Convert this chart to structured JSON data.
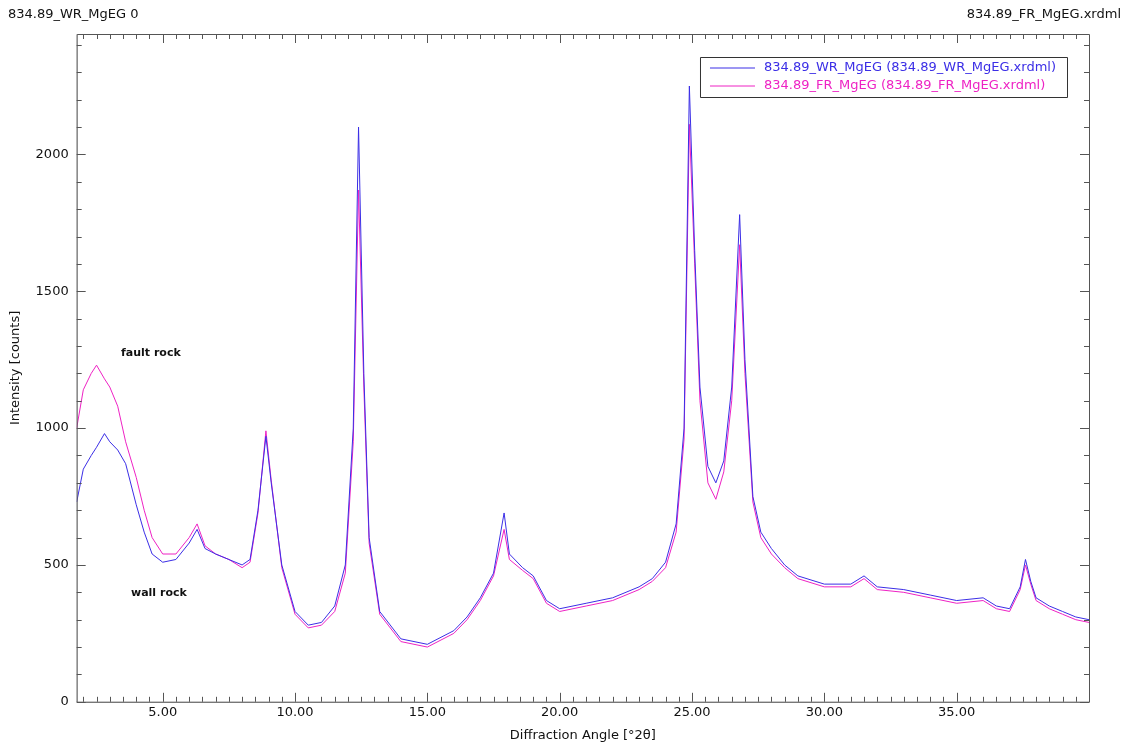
{
  "chart_data": {
    "type": "line",
    "xlabel": "Diffraction Angle [°2θ]",
    "ylabel": "Intensity [counts]",
    "annotations": [
      "834.89_WR_MgEG 0",
      "834.89_FR_MgEG.xrdml",
      "fault rock",
      "wall rock"
    ],
    "series": [
      {
        "name": "834.89_WR_MgEG (834.89_WR_MgEG.xrdml)",
        "color": "#3b2ee6",
        "x": [
          1.75,
          2.0,
          2.3,
          2.5,
          2.8,
          3.0,
          3.3,
          3.6,
          4.0,
          4.3,
          4.6,
          5.0,
          5.5,
          6.0,
          6.3,
          6.6,
          7.0,
          7.5,
          8.0,
          8.3,
          8.6,
          8.9,
          9.1,
          9.5,
          10.0,
          10.5,
          11.0,
          11.5,
          11.9,
          12.2,
          12.4,
          12.6,
          12.8,
          13.2,
          14.0,
          15.0,
          16.0,
          16.5,
          17.0,
          17.5,
          17.9,
          18.1,
          18.6,
          19.0,
          19.5,
          20.0,
          21.0,
          22.0,
          23.0,
          23.5,
          24.0,
          24.4,
          24.7,
          24.9,
          25.1,
          25.3,
          25.6,
          25.9,
          26.2,
          26.5,
          26.8,
          27.0,
          27.3,
          27.6,
          28.0,
          28.5,
          29.0,
          30.0,
          31.0,
          31.5,
          32.0,
          33.0,
          34.0,
          35.0,
          36.0,
          36.5,
          37.0,
          37.4,
          37.6,
          37.8,
          38.0,
          38.5,
          39.0,
          39.5,
          40.0
        ],
        "values": [
          730,
          850,
          900,
          930,
          980,
          950,
          920,
          870,
          720,
          620,
          540,
          510,
          520,
          580,
          630,
          560,
          540,
          520,
          500,
          520,
          700,
          970,
          800,
          500,
          330,
          280,
          290,
          350,
          500,
          1000,
          2100,
          1200,
          600,
          330,
          230,
          210,
          260,
          310,
          380,
          470,
          690,
          540,
          490,
          460,
          370,
          340,
          360,
          380,
          420,
          450,
          510,
          650,
          1000,
          2250,
          1650,
          1150,
          860,
          800,
          880,
          1150,
          1780,
          1250,
          750,
          620,
          560,
          500,
          460,
          430,
          430,
          460,
          420,
          410,
          390,
          370,
          380,
          350,
          340,
          420,
          520,
          440,
          380,
          350,
          330,
          310,
          300
        ]
      },
      {
        "name": "834.89_FR_MgEG (834.89_FR_MgEG.xrdml)",
        "color": "#ee22c4",
        "x": [
          1.75,
          2.0,
          2.3,
          2.5,
          2.8,
          3.0,
          3.3,
          3.6,
          4.0,
          4.3,
          4.6,
          5.0,
          5.5,
          6.0,
          6.3,
          6.6,
          7.0,
          7.5,
          8.0,
          8.3,
          8.6,
          8.9,
          9.1,
          9.5,
          10.0,
          10.5,
          11.0,
          11.5,
          11.9,
          12.2,
          12.4,
          12.6,
          12.8,
          13.2,
          14.0,
          15.0,
          16.0,
          16.5,
          17.0,
          17.5,
          17.9,
          18.1,
          18.6,
          19.0,
          19.5,
          20.0,
          21.0,
          22.0,
          23.0,
          23.5,
          24.0,
          24.4,
          24.7,
          24.9,
          25.1,
          25.3,
          25.6,
          25.9,
          26.2,
          26.5,
          26.8,
          27.0,
          27.3,
          27.6,
          28.0,
          28.5,
          29.0,
          30.0,
          31.0,
          31.5,
          32.0,
          33.0,
          34.0,
          35.0,
          36.0,
          36.5,
          37.0,
          37.4,
          37.6,
          37.8,
          38.0,
          38.5,
          39.0,
          39.5,
          40.0
        ],
        "values": [
          1000,
          1140,
          1200,
          1230,
          1180,
          1150,
          1080,
          950,
          820,
          700,
          600,
          540,
          540,
          600,
          650,
          570,
          540,
          520,
          490,
          510,
          690,
          990,
          810,
          490,
          320,
          270,
          280,
          330,
          470,
          950,
          1870,
          1150,
          580,
          320,
          220,
          200,
          250,
          300,
          370,
          460,
          630,
          520,
          480,
          450,
          360,
          330,
          350,
          370,
          410,
          440,
          490,
          620,
          960,
          2110,
          1600,
          1100,
          800,
          740,
          840,
          1100,
          1670,
          1200,
          730,
          600,
          540,
          490,
          450,
          420,
          420,
          450,
          410,
          400,
          380,
          360,
          370,
          340,
          330,
          410,
          500,
          430,
          370,
          340,
          320,
          300,
          290
        ]
      }
    ],
    "xlim": [
      1.75,
      40
    ],
    "ylim": [
      0,
      2440
    ],
    "xticks": [
      {
        "value": 2,
        "label": null
      },
      {
        "value": 2.5,
        "label": null
      },
      {
        "value": 3,
        "label": null
      },
      {
        "value": 3.5,
        "label": null
      },
      {
        "value": 4,
        "label": null
      },
      {
        "value": 4.5,
        "label": null
      },
      {
        "value": 5,
        "label": "5.00"
      },
      {
        "value": 5.5,
        "label": null
      },
      {
        "value": 6,
        "label": null
      },
      {
        "value": 6.5,
        "label": null
      },
      {
        "value": 7,
        "label": null
      },
      {
        "value": 7.5,
        "label": null
      },
      {
        "value": 8,
        "label": null
      },
      {
        "value": 8.5,
        "label": null
      },
      {
        "value": 9,
        "label": null
      },
      {
        "value": 9.5,
        "label": null
      },
      {
        "value": 10,
        "label": "10.00"
      },
      {
        "value": 10.5,
        "label": null
      },
      {
        "value": 11,
        "label": null
      },
      {
        "value": 11.5,
        "label": null
      },
      {
        "value": 12,
        "label": null
      },
      {
        "value": 12.5,
        "label": null
      },
      {
        "value": 13,
        "label": null
      },
      {
        "value": 13.5,
        "label": null
      },
      {
        "value": 14,
        "label": null
      },
      {
        "value": 14.5,
        "label": null
      },
      {
        "value": 15,
        "label": "15.00"
      },
      {
        "value": 15.5,
        "label": null
      },
      {
        "value": 16,
        "label": null
      },
      {
        "value": 16.5,
        "label": null
      },
      {
        "value": 17,
        "label": null
      },
      {
        "value": 17.5,
        "label": null
      },
      {
        "value": 18,
        "label": null
      },
      {
        "value": 18.5,
        "label": null
      },
      {
        "value": 19,
        "label": null
      },
      {
        "value": 19.5,
        "label": null
      },
      {
        "value": 20,
        "label": "20.00"
      },
      {
        "value": 20.5,
        "label": null
      },
      {
        "value": 21,
        "label": null
      },
      {
        "value": 21.5,
        "label": null
      },
      {
        "value": 22,
        "label": null
      },
      {
        "value": 22.5,
        "label": null
      },
      {
        "value": 23,
        "label": null
      },
      {
        "value": 23.5,
        "label": null
      },
      {
        "value": 24,
        "label": null
      },
      {
        "value": 24.5,
        "label": null
      },
      {
        "value": 25,
        "label": "25.00"
      },
      {
        "value": 25.5,
        "label": null
      },
      {
        "value": 26,
        "label": null
      },
      {
        "value": 26.5,
        "label": null
      },
      {
        "value": 27,
        "label": null
      },
      {
        "value": 27.5,
        "label": null
      },
      {
        "value": 28,
        "label": null
      },
      {
        "value": 28.5,
        "label": null
      },
      {
        "value": 29,
        "label": null
      },
      {
        "value": 29.5,
        "label": null
      },
      {
        "value": 30,
        "label": "30.00"
      },
      {
        "value": 30.5,
        "label": null
      },
      {
        "value": 31,
        "label": null
      },
      {
        "value": 31.5,
        "label": null
      },
      {
        "value": 32,
        "label": null
      },
      {
        "value": 32.5,
        "label": null
      },
      {
        "value": 33,
        "label": null
      },
      {
        "value": 33.5,
        "label": null
      },
      {
        "value": 34,
        "label": null
      },
      {
        "value": 34.5,
        "label": null
      },
      {
        "value": 35,
        "label": "35.00"
      },
      {
        "value": 35.5,
        "label": null
      },
      {
        "value": 36,
        "label": null
      },
      {
        "value": 36.5,
        "label": null
      },
      {
        "value": 37,
        "label": null
      },
      {
        "value": 37.5,
        "label": null
      },
      {
        "value": 38,
        "label": null
      },
      {
        "value": 38.5,
        "label": null
      },
      {
        "value": 39,
        "label": null
      },
      {
        "value": 39.5,
        "label": null
      }
    ],
    "yticks": [
      0,
      {
        "value": 100,
        "label": null
      },
      {
        "value": 200,
        "label": null
      },
      {
        "value": 300,
        "label": null
      },
      {
        "value": 400,
        "label": null
      },
      500,
      {
        "value": 600,
        "label": null
      },
      {
        "value": 700,
        "label": null
      },
      {
        "value": 800,
        "label": null
      },
      {
        "value": 900,
        "label": null
      },
      1000,
      {
        "value": 1100,
        "label": null
      },
      {
        "value": 1200,
        "label": null
      },
      {
        "value": 1300,
        "label": null
      },
      {
        "value": 1400,
        "label": null
      },
      1500,
      {
        "value": 1600,
        "label": null
      },
      {
        "value": 1700,
        "label": null
      },
      {
        "value": 1800,
        "label": null
      },
      {
        "value": 1900,
        "label": null
      },
      2000,
      {
        "value": 2100,
        "label": null
      },
      {
        "value": 2200,
        "label": null
      },
      {
        "value": 2300,
        "label": null
      },
      {
        "value": 2400,
        "label": null
      }
    ],
    "grid": false,
    "legend": "top right",
    "marker": "none",
    "line_style": "solid"
  }
}
